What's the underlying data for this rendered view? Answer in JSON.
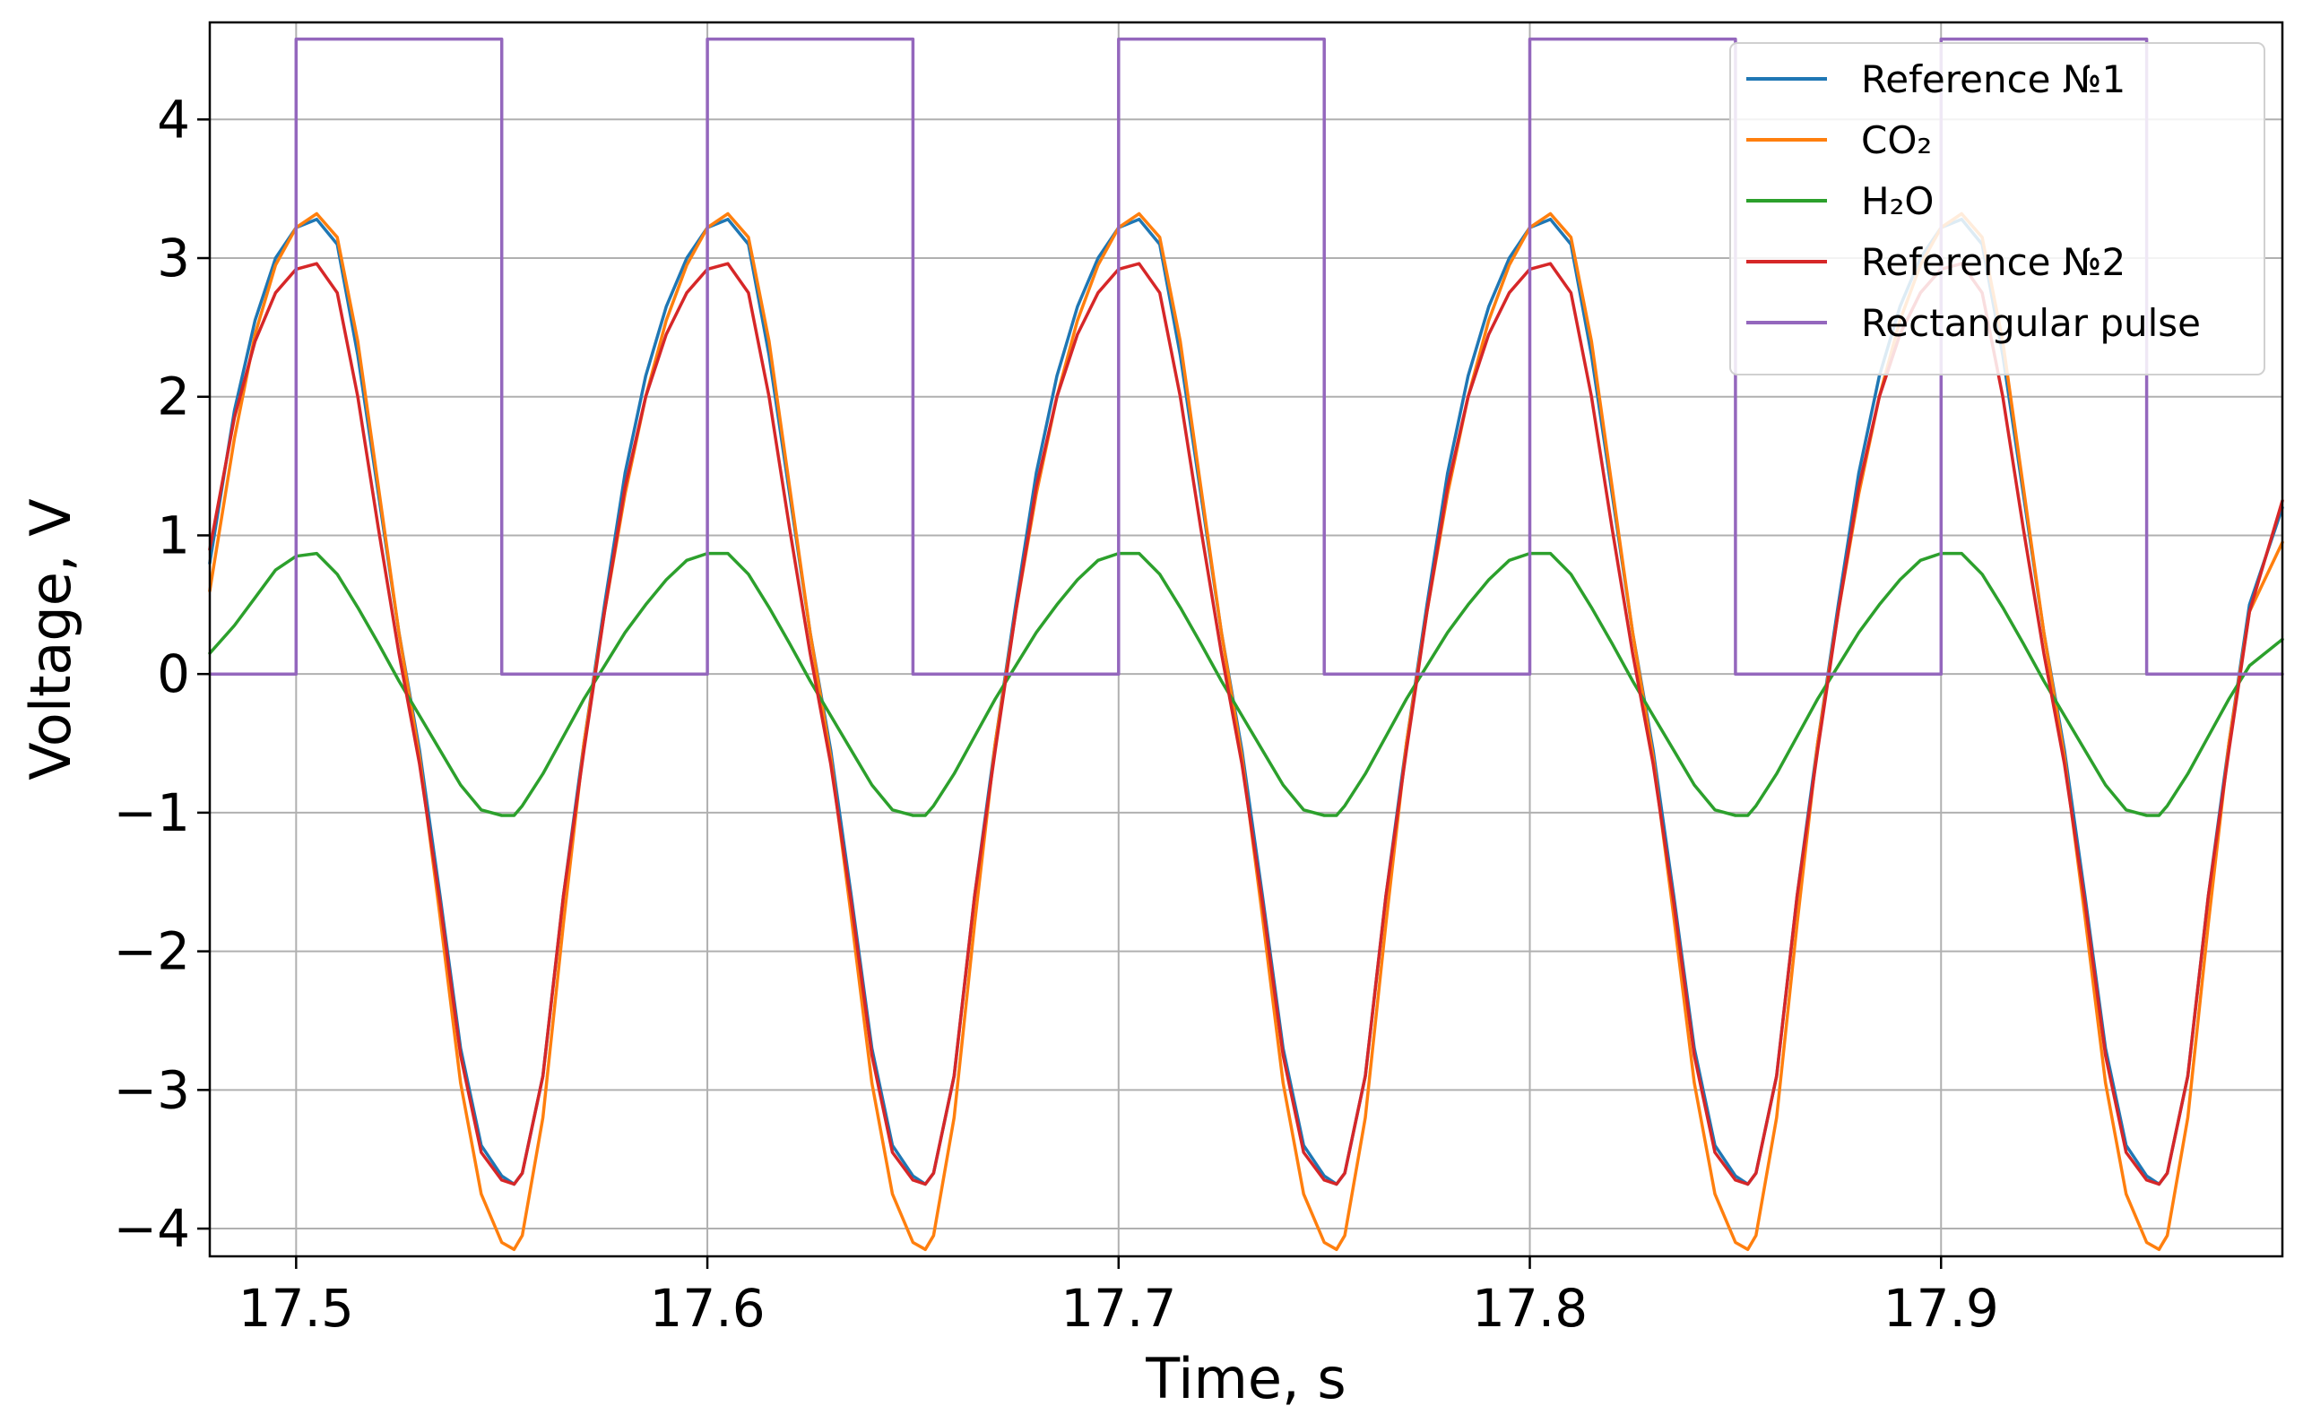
{
  "chart_data": {
    "type": "line",
    "title": "",
    "xlabel": "Time, s",
    "ylabel": "Voltage, V",
    "xlim": [
      17.479,
      17.983
    ],
    "ylim": [
      -4.2,
      4.7
    ],
    "x_ticks": [
      17.5,
      17.6,
      17.7,
      17.8,
      17.9
    ],
    "x_tick_labels": [
      "17.5",
      "17.6",
      "17.7",
      "17.8",
      "17.9"
    ],
    "y_ticks": [
      -4,
      -3,
      -2,
      -1,
      0,
      1,
      2,
      3,
      4
    ],
    "y_tick_labels": [
      "−4",
      "−3",
      "−2",
      "−1",
      "0",
      "1",
      "2",
      "3",
      "4"
    ],
    "grid": true,
    "legend_position": "top-right",
    "series": [
      {
        "name": "Reference №1",
        "color": "#1f77b4",
        "x": [
          17.479,
          17.485,
          17.49,
          17.495,
          17.5,
          17.505,
          17.51,
          17.515,
          17.52,
          17.525,
          17.53,
          17.535,
          17.54,
          17.545,
          17.55,
          17.553,
          17.555,
          17.56,
          17.565,
          17.57,
          17.575,
          17.58,
          17.585,
          17.59,
          17.595,
          17.6,
          17.605,
          17.61,
          17.615,
          17.62,
          17.625,
          17.63,
          17.635,
          17.64,
          17.645,
          17.65,
          17.653,
          17.655,
          17.66,
          17.665,
          17.67,
          17.675,
          17.68,
          17.685,
          17.69,
          17.695,
          17.7,
          17.705,
          17.71,
          17.715,
          17.72,
          17.725,
          17.73,
          17.735,
          17.74,
          17.745,
          17.75,
          17.753,
          17.755,
          17.76,
          17.765,
          17.77,
          17.775,
          17.78,
          17.785,
          17.79,
          17.795,
          17.8,
          17.805,
          17.81,
          17.815,
          17.82,
          17.825,
          17.83,
          17.835,
          17.84,
          17.845,
          17.85,
          17.853,
          17.855,
          17.86,
          17.865,
          17.87,
          17.875,
          17.88,
          17.885,
          17.89,
          17.895,
          17.9,
          17.905,
          17.91,
          17.915,
          17.92,
          17.925,
          17.93,
          17.935,
          17.94,
          17.945,
          17.95,
          17.953,
          17.955,
          17.96,
          17.965,
          17.97,
          17.975,
          17.983
        ],
        "y": [
          0.8,
          1.9,
          2.55,
          3.0,
          3.22,
          3.28,
          3.1,
          2.3,
          1.3,
          0.3,
          -0.55,
          -1.6,
          -2.7,
          -3.4,
          -3.62,
          -3.68,
          -3.6,
          -2.9,
          -1.6,
          -0.5,
          0.5,
          1.45,
          2.15,
          2.65,
          3.0,
          3.22,
          3.28,
          3.1,
          2.3,
          1.3,
          0.3,
          -0.55,
          -1.6,
          -2.7,
          -3.4,
          -3.62,
          -3.68,
          -3.6,
          -2.9,
          -1.6,
          -0.5,
          0.5,
          1.45,
          2.15,
          2.65,
          3.0,
          3.22,
          3.28,
          3.1,
          2.3,
          1.3,
          0.3,
          -0.55,
          -1.6,
          -2.7,
          -3.4,
          -3.62,
          -3.68,
          -3.6,
          -2.9,
          -1.6,
          -0.5,
          0.5,
          1.45,
          2.15,
          2.65,
          3.0,
          3.22,
          3.28,
          3.1,
          2.3,
          1.3,
          0.3,
          -0.55,
          -1.6,
          -2.7,
          -3.4,
          -3.62,
          -3.68,
          -3.6,
          -2.9,
          -1.6,
          -0.5,
          0.5,
          1.45,
          2.15,
          2.65,
          3.0,
          3.22,
          3.28,
          3.1,
          2.3,
          1.3,
          0.3,
          -0.55,
          -1.6,
          -2.7,
          -3.4,
          -3.62,
          -3.68,
          -3.6,
          -2.9,
          -1.6,
          -0.5,
          0.5,
          1.2
        ]
      },
      {
        "name": "CO₂",
        "color": "#ff7f0e",
        "x": [
          17.479,
          17.485,
          17.49,
          17.495,
          17.5,
          17.505,
          17.51,
          17.515,
          17.52,
          17.525,
          17.53,
          17.535,
          17.54,
          17.545,
          17.55,
          17.553,
          17.555,
          17.56,
          17.565,
          17.57,
          17.575,
          17.58,
          17.585,
          17.59,
          17.595,
          17.6,
          17.605,
          17.61,
          17.615,
          17.62,
          17.625,
          17.63,
          17.635,
          17.64,
          17.645,
          17.65,
          17.653,
          17.655,
          17.66,
          17.665,
          17.67,
          17.675,
          17.68,
          17.685,
          17.69,
          17.695,
          17.7,
          17.705,
          17.71,
          17.715,
          17.72,
          17.725,
          17.73,
          17.735,
          17.74,
          17.745,
          17.75,
          17.753,
          17.755,
          17.76,
          17.765,
          17.77,
          17.775,
          17.78,
          17.785,
          17.79,
          17.795,
          17.8,
          17.805,
          17.81,
          17.815,
          17.82,
          17.825,
          17.83,
          17.835,
          17.84,
          17.845,
          17.85,
          17.853,
          17.855,
          17.86,
          17.865,
          17.87,
          17.875,
          17.88,
          17.885,
          17.89,
          17.895,
          17.9,
          17.905,
          17.91,
          17.915,
          17.92,
          17.925,
          17.93,
          17.935,
          17.94,
          17.945,
          17.95,
          17.953,
          17.955,
          17.96,
          17.965,
          17.97,
          17.975,
          17.983
        ],
        "y": [
          0.6,
          1.7,
          2.45,
          2.95,
          3.22,
          3.32,
          3.15,
          2.4,
          1.35,
          0.3,
          -0.6,
          -1.75,
          -2.95,
          -3.75,
          -4.1,
          -4.15,
          -4.05,
          -3.2,
          -1.8,
          -0.5,
          0.45,
          1.3,
          2.0,
          2.55,
          2.95,
          3.22,
          3.32,
          3.15,
          2.4,
          1.35,
          0.3,
          -0.6,
          -1.75,
          -2.95,
          -3.75,
          -4.1,
          -4.15,
          -4.05,
          -3.2,
          -1.8,
          -0.5,
          0.45,
          1.3,
          2.0,
          2.55,
          2.95,
          3.22,
          3.32,
          3.15,
          2.4,
          1.35,
          0.3,
          -0.6,
          -1.75,
          -2.95,
          -3.75,
          -4.1,
          -4.15,
          -4.05,
          -3.2,
          -1.8,
          -0.5,
          0.45,
          1.3,
          2.0,
          2.55,
          2.95,
          3.22,
          3.32,
          3.15,
          2.4,
          1.35,
          0.3,
          -0.6,
          -1.75,
          -2.95,
          -3.75,
          -4.1,
          -4.15,
          -4.05,
          -3.2,
          -1.8,
          -0.5,
          0.45,
          1.3,
          2.0,
          2.55,
          2.95,
          3.22,
          3.32,
          3.15,
          2.4,
          1.35,
          0.3,
          -0.6,
          -1.75,
          -2.95,
          -3.75,
          -4.1,
          -4.15,
          -4.05,
          -3.2,
          -1.8,
          -0.5,
          0.45,
          0.95
        ]
      },
      {
        "name": "H₂O",
        "color": "#2ca02c",
        "x": [
          17.479,
          17.485,
          17.49,
          17.495,
          17.5,
          17.505,
          17.51,
          17.515,
          17.52,
          17.525,
          17.53,
          17.535,
          17.54,
          17.545,
          17.55,
          17.553,
          17.555,
          17.56,
          17.565,
          17.57,
          17.575,
          17.58,
          17.585,
          17.59,
          17.595,
          17.6,
          17.605,
          17.61,
          17.615,
          17.62,
          17.625,
          17.63,
          17.635,
          17.64,
          17.645,
          17.65,
          17.653,
          17.655,
          17.66,
          17.665,
          17.67,
          17.675,
          17.68,
          17.685,
          17.69,
          17.695,
          17.7,
          17.705,
          17.71,
          17.715,
          17.72,
          17.725,
          17.73,
          17.735,
          17.74,
          17.745,
          17.75,
          17.753,
          17.755,
          17.76,
          17.765,
          17.77,
          17.775,
          17.78,
          17.785,
          17.79,
          17.795,
          17.8,
          17.805,
          17.81,
          17.815,
          17.82,
          17.825,
          17.83,
          17.835,
          17.84,
          17.845,
          17.85,
          17.853,
          17.855,
          17.86,
          17.865,
          17.87,
          17.875,
          17.88,
          17.885,
          17.89,
          17.895,
          17.9,
          17.905,
          17.91,
          17.915,
          17.92,
          17.925,
          17.93,
          17.935,
          17.94,
          17.945,
          17.95,
          17.953,
          17.955,
          17.96,
          17.965,
          17.97,
          17.975,
          17.983
        ],
        "y": [
          0.15,
          0.35,
          0.55,
          0.75,
          0.85,
          0.87,
          0.72,
          0.48,
          0.22,
          -0.05,
          -0.3,
          -0.55,
          -0.8,
          -0.98,
          -1.02,
          -1.02,
          -0.95,
          -0.72,
          -0.45,
          -0.18,
          0.06,
          0.3,
          0.5,
          0.68,
          0.82,
          0.87,
          0.87,
          0.72,
          0.48,
          0.22,
          -0.05,
          -0.3,
          -0.55,
          -0.8,
          -0.98,
          -1.02,
          -1.02,
          -0.95,
          -0.72,
          -0.45,
          -0.18,
          0.06,
          0.3,
          0.5,
          0.68,
          0.82,
          0.87,
          0.87,
          0.72,
          0.48,
          0.22,
          -0.05,
          -0.3,
          -0.55,
          -0.8,
          -0.98,
          -1.02,
          -1.02,
          -0.95,
          -0.72,
          -0.45,
          -0.18,
          0.06,
          0.3,
          0.5,
          0.68,
          0.82,
          0.87,
          0.87,
          0.72,
          0.48,
          0.22,
          -0.05,
          -0.3,
          -0.55,
          -0.8,
          -0.98,
          -1.02,
          -1.02,
          -0.95,
          -0.72,
          -0.45,
          -0.18,
          0.06,
          0.3,
          0.5,
          0.68,
          0.82,
          0.87,
          0.87,
          0.72,
          0.48,
          0.22,
          -0.05,
          -0.3,
          -0.55,
          -0.8,
          -0.98,
          -1.02,
          -1.02,
          -0.95,
          -0.72,
          -0.45,
          -0.18,
          0.06,
          0.25
        ]
      },
      {
        "name": "Reference №2",
        "color": "#d62728",
        "x": [
          17.479,
          17.485,
          17.49,
          17.495,
          17.5,
          17.505,
          17.51,
          17.515,
          17.52,
          17.525,
          17.53,
          17.535,
          17.54,
          17.545,
          17.55,
          17.553,
          17.555,
          17.56,
          17.565,
          17.57,
          17.575,
          17.58,
          17.585,
          17.59,
          17.595,
          17.6,
          17.605,
          17.61,
          17.615,
          17.62,
          17.625,
          17.63,
          17.635,
          17.64,
          17.645,
          17.65,
          17.653,
          17.655,
          17.66,
          17.665,
          17.67,
          17.675,
          17.68,
          17.685,
          17.69,
          17.695,
          17.7,
          17.705,
          17.71,
          17.715,
          17.72,
          17.725,
          17.73,
          17.735,
          17.74,
          17.745,
          17.75,
          17.753,
          17.755,
          17.76,
          17.765,
          17.77,
          17.775,
          17.78,
          17.785,
          17.79,
          17.795,
          17.8,
          17.805,
          17.81,
          17.815,
          17.82,
          17.825,
          17.83,
          17.835,
          17.84,
          17.845,
          17.85,
          17.853,
          17.855,
          17.86,
          17.865,
          17.87,
          17.875,
          17.88,
          17.885,
          17.89,
          17.895,
          17.9,
          17.905,
          17.91,
          17.915,
          17.92,
          17.925,
          17.93,
          17.935,
          17.94,
          17.945,
          17.95,
          17.953,
          17.955,
          17.96,
          17.965,
          17.97,
          17.975,
          17.983
        ],
        "y": [
          0.9,
          1.85,
          2.4,
          2.75,
          2.92,
          2.96,
          2.75,
          2.0,
          1.05,
          0.15,
          -0.65,
          -1.65,
          -2.75,
          -3.45,
          -3.65,
          -3.68,
          -3.6,
          -2.9,
          -1.6,
          -0.55,
          0.45,
          1.35,
          2.0,
          2.45,
          2.75,
          2.92,
          2.96,
          2.75,
          2.0,
          1.05,
          0.15,
          -0.65,
          -1.65,
          -2.75,
          -3.45,
          -3.65,
          -3.68,
          -3.6,
          -2.9,
          -1.6,
          -0.55,
          0.45,
          1.35,
          2.0,
          2.45,
          2.75,
          2.92,
          2.96,
          2.75,
          2.0,
          1.05,
          0.15,
          -0.65,
          -1.65,
          -2.75,
          -3.45,
          -3.65,
          -3.68,
          -3.6,
          -2.9,
          -1.6,
          -0.55,
          0.45,
          1.35,
          2.0,
          2.45,
          2.75,
          2.92,
          2.96,
          2.75,
          2.0,
          1.05,
          0.15,
          -0.65,
          -1.65,
          -2.75,
          -3.45,
          -3.65,
          -3.68,
          -3.6,
          -2.9,
          -1.6,
          -0.55,
          0.45,
          1.35,
          2.0,
          2.45,
          2.75,
          2.92,
          2.96,
          2.75,
          2.0,
          1.05,
          0.15,
          -0.65,
          -1.65,
          -2.75,
          -3.45,
          -3.65,
          -3.68,
          -3.6,
          -2.9,
          -1.6,
          -0.55,
          0.45,
          1.25
        ]
      },
      {
        "name": "Rectangular pulse",
        "color": "#9467bd",
        "x": [
          17.479,
          17.5,
          17.5,
          17.55,
          17.55,
          17.6,
          17.6,
          17.65,
          17.65,
          17.7,
          17.7,
          17.75,
          17.75,
          17.8,
          17.8,
          17.85,
          17.85,
          17.9,
          17.9,
          17.95,
          17.95,
          17.983
        ],
        "y": [
          0,
          0,
          4.58,
          4.58,
          0,
          0,
          4.58,
          4.58,
          0,
          0,
          4.58,
          4.58,
          0,
          0,
          4.58,
          4.58,
          0,
          0,
          4.58,
          4.58,
          0,
          0
        ]
      }
    ]
  }
}
